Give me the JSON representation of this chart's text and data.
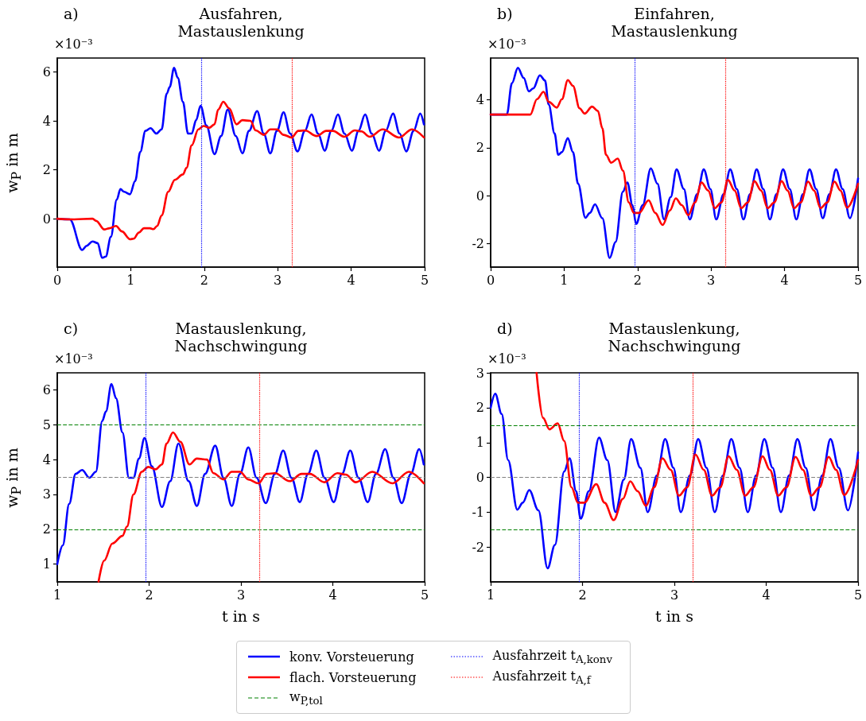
{
  "chart_data": [
    {
      "type": "line",
      "title": "Ausfahren,\nMastauslenkung",
      "ylabel": "w$_{P}$ in m",
      "annotations": [
        "a)",
        "×10⁻³"
      ],
      "xlim": [
        0,
        5
      ],
      "xticks": [
        0,
        1,
        2,
        3,
        4,
        5
      ],
      "ylim": [
        -1.98,
        6.57
      ],
      "yticks": [
        0,
        2,
        4,
        6
      ],
      "legend": "bottom",
      "marker": "none",
      "line_style": "solid",
      "ref_lines": [
        {
          "axis": "x",
          "value": 1.96,
          "color": "#0000ff",
          "line_style": "dotted"
        },
        {
          "axis": "x",
          "value": 3.2,
          "color": "#ff0000",
          "line_style": "dotted"
        }
      ],
      "series": [
        {
          "name": "konv. Vorsteuerung",
          "color": "#0000ff",
          "x": [
            0,
            0.17,
            0.34,
            0.4,
            0.48,
            0.55,
            0.61,
            0.66,
            0.73,
            0.81,
            0.86,
            0.91,
            0.99,
            1.06,
            1.13,
            1.2,
            1.27,
            1.35,
            1.42,
            1.49,
            1.53,
            1.59,
            1.64,
            1.71,
            1.78,
            1.83,
            1.89,
            1.95,
            2.03,
            2.14,
            2.23,
            2.32,
            2.43,
            2.52,
            2.61,
            2.72,
            2.81,
            2.9,
            2.99,
            3.08,
            3.17,
            3.27,
            3.37,
            3.46,
            3.55,
            3.64,
            3.73,
            3.82,
            3.91,
            4.01,
            4.1,
            4.19,
            4.28,
            4.38,
            4.47,
            4.57,
            4.66,
            4.75,
            4.85,
            4.94,
            4.99
          ],
          "values": [
            0,
            -0.03,
            -1.28,
            -1.11,
            -0.93,
            -1.0,
            -1.6,
            -1.55,
            -0.74,
            0.78,
            1.21,
            1.1,
            1.0,
            1.54,
            2.73,
            3.59,
            3.7,
            3.48,
            3.65,
            5.11,
            5.38,
            6.17,
            5.76,
            4.78,
            3.48,
            3.48,
            4.03,
            4.62,
            3.81,
            2.64,
            3.38,
            4.46,
            3.38,
            2.67,
            3.59,
            4.4,
            3.48,
            2.67,
            3.59,
            4.35,
            3.48,
            2.75,
            3.59,
            4.26,
            3.48,
            2.78,
            3.59,
            4.26,
            3.48,
            2.78,
            3.59,
            4.26,
            3.48,
            2.78,
            3.59,
            4.3,
            3.48,
            2.75,
            3.59,
            4.3,
            3.86
          ]
        },
        {
          "name": "flach. Vorsteuerung",
          "color": "#ff0000",
          "x": [
            0,
            0.23,
            0.48,
            0.53,
            0.64,
            0.71,
            0.8,
            0.88,
            0.99,
            1.04,
            1.11,
            1.18,
            1.26,
            1.31,
            1.36,
            1.42,
            1.51,
            1.6,
            1.71,
            1.76,
            1.83,
            1.92,
            1.99,
            2.07,
            2.14,
            2.19,
            2.26,
            2.34,
            2.44,
            2.52,
            2.63,
            2.7,
            2.81,
            2.9,
            2.99,
            3.08,
            3.19,
            3.28,
            3.37,
            3.53,
            3.66,
            3.75,
            3.91,
            4.05,
            4.14,
            4.25,
            4.43,
            4.65,
            4.83,
            4.99
          ],
          "values": [
            0,
            -0.03,
            0,
            -0.09,
            -0.44,
            -0.39,
            -0.3,
            -0.52,
            -0.84,
            -0.82,
            -0.57,
            -0.39,
            -0.39,
            -0.43,
            -0.3,
            0.13,
            1.1,
            1.59,
            1.81,
            2.08,
            3.0,
            3.65,
            3.79,
            3.72,
            3.86,
            4.46,
            4.78,
            4.51,
            3.86,
            4.03,
            4.0,
            3.61,
            3.43,
            3.65,
            3.65,
            3.43,
            3.32,
            3.59,
            3.61,
            3.38,
            3.59,
            3.59,
            3.35,
            3.61,
            3.57,
            3.35,
            3.65,
            3.32,
            3.65,
            3.32
          ]
        }
      ]
    },
    {
      "type": "line",
      "title": "Einfahren,\nMastauslenkung",
      "annotations": [
        "b)",
        "×10⁻³"
      ],
      "xlim": [
        0,
        5
      ],
      "xticks": [
        0,
        1,
        2,
        3,
        4,
        5
      ],
      "ylim": [
        -2.98,
        5.75
      ],
      "yticks": [
        -2,
        0,
        2,
        4
      ],
      "marker": "none",
      "line_style": "solid",
      "ref_lines": [
        {
          "axis": "x",
          "value": 1.96,
          "color": "#0000ff",
          "line_style": "dotted"
        },
        {
          "axis": "x",
          "value": 3.2,
          "color": "#ff0000",
          "line_style": "dotted"
        }
      ],
      "series": [
        {
          "color": "#0000ff",
          "x": [
            0,
            0.22,
            0.29,
            0.37,
            0.45,
            0.52,
            0.58,
            0.67,
            0.74,
            0.79,
            0.87,
            0.92,
            0.97,
            1.05,
            1.12,
            1.19,
            1.29,
            1.35,
            1.42,
            1.52,
            1.62,
            1.7,
            1.8,
            1.86,
            1.93,
            1.98,
            2.07,
            2.18,
            2.27,
            2.36,
            2.45,
            2.53,
            2.63,
            2.71,
            2.81,
            2.9,
            2.99,
            3.07,
            3.17,
            3.26,
            3.35,
            3.44,
            3.53,
            3.62,
            3.71,
            3.8,
            3.89,
            3.98,
            4.07,
            4.16,
            4.25,
            4.34,
            4.43,
            4.52,
            4.61,
            4.7,
            4.79,
            4.89,
            5.0
          ],
          "values": [
            3.39,
            3.39,
            4.7,
            5.34,
            4.92,
            4.36,
            4.48,
            5.03,
            4.81,
            3.81,
            2.6,
            1.71,
            1.82,
            2.4,
            1.82,
            0.5,
            -0.92,
            -0.72,
            -0.36,
            -0.94,
            -2.6,
            -1.93,
            0.17,
            0.55,
            -0.39,
            -1.18,
            -0.39,
            1.14,
            0.5,
            -0.99,
            -0.06,
            1.1,
            0.28,
            -0.99,
            0.06,
            1.1,
            0.28,
            -0.99,
            0.06,
            1.1,
            0.28,
            -0.99,
            0.06,
            1.1,
            0.28,
            -0.99,
            0.06,
            1.1,
            0.28,
            -0.99,
            0.06,
            1.1,
            0.28,
            -0.94,
            0.06,
            1.1,
            0.28,
            -0.94,
            0.72
          ]
        },
        {
          "color": "#ff0000",
          "x": [
            0,
            0.54,
            0.63,
            0.72,
            0.79,
            0.9,
            0.97,
            1.05,
            1.12,
            1.21,
            1.28,
            1.38,
            1.46,
            1.52,
            1.57,
            1.64,
            1.73,
            1.8,
            1.88,
            1.95,
            2.02,
            2.15,
            2.24,
            2.34,
            2.44,
            2.52,
            2.6,
            2.69,
            2.78,
            2.87,
            2.96,
            3.05,
            3.14,
            3.23,
            3.32,
            3.41,
            3.5,
            3.59,
            3.68,
            3.77,
            3.86,
            3.96,
            4.04,
            4.13,
            4.22,
            4.32,
            4.4,
            4.49,
            4.58,
            4.68,
            4.76,
            4.85,
            5.0
          ],
          "values": [
            3.39,
            3.39,
            4.03,
            4.34,
            3.92,
            3.68,
            4.03,
            4.83,
            4.59,
            3.65,
            3.43,
            3.72,
            3.54,
            2.82,
            1.71,
            1.38,
            1.55,
            1.05,
            -0.28,
            -0.72,
            -0.72,
            -0.19,
            -0.72,
            -1.22,
            -0.61,
            -0.11,
            -0.39,
            -0.81,
            -0.28,
            0.55,
            0.22,
            -0.52,
            -0.28,
            0.66,
            0.22,
            -0.52,
            -0.28,
            0.61,
            0.22,
            -0.52,
            -0.28,
            0.61,
            0.22,
            -0.52,
            -0.28,
            0.59,
            0.22,
            -0.52,
            -0.28,
            0.59,
            0.22,
            -0.5,
            0.5
          ]
        }
      ]
    },
    {
      "type": "line",
      "title": "Mastauslenkung,\nNachschwingung",
      "xlabel": "t in s",
      "ylabel": "w$_{P}$ in m",
      "annotations": [
        "c)",
        "×10⁻³"
      ],
      "xlim": [
        1,
        5
      ],
      "xticks": [
        1,
        2,
        3,
        4,
        5
      ],
      "ylim": [
        0.49,
        6.49
      ],
      "yticks": [
        1,
        2,
        3,
        4,
        5,
        6
      ],
      "legend": "bottom",
      "marker": "none",
      "line_style": "solid",
      "ref_lines": [
        {
          "axis": "y",
          "value": 5,
          "label": "w$_{P,tol}$",
          "color": "#008000",
          "line_style": "dashed"
        },
        {
          "axis": "y",
          "value": 2,
          "color": "#008000",
          "line_style": "dashed"
        },
        {
          "axis": "y",
          "value": 3.5,
          "color": "#808080",
          "line_style": "dashed"
        },
        {
          "axis": "x",
          "value": 1.96,
          "label": "Ausfahrzeit t$_{A,konv}$",
          "color": "#0000ff",
          "line_style": "dotted"
        },
        {
          "axis": "x",
          "value": 3.2,
          "label": "Ausfahrzeit t$_{A,f}$",
          "color": "#ff0000",
          "line_style": "dotted"
        }
      ],
      "series": [
        {
          "color": "#0000ff",
          "x": [
            1.0,
            1.06,
            1.13,
            1.2,
            1.27,
            1.35,
            1.42,
            1.49,
            1.53,
            1.59,
            1.64,
            1.71,
            1.78,
            1.83,
            1.89,
            1.95,
            2.03,
            2.14,
            2.23,
            2.32,
            2.43,
            2.52,
            2.61,
            2.72,
            2.81,
            2.9,
            2.99,
            3.08,
            3.17,
            3.27,
            3.37,
            3.46,
            3.55,
            3.64,
            3.73,
            3.82,
            3.91,
            4.01,
            4.1,
            4.19,
            4.28,
            4.38,
            4.47,
            4.57,
            4.66,
            4.75,
            4.85,
            4.94,
            4.99
          ],
          "values": [
            1.0,
            1.54,
            2.73,
            3.59,
            3.7,
            3.48,
            3.65,
            5.11,
            5.38,
            6.17,
            5.76,
            4.78,
            3.48,
            3.48,
            4.03,
            4.62,
            3.81,
            2.64,
            3.38,
            4.46,
            3.38,
            2.67,
            3.59,
            4.4,
            3.48,
            2.67,
            3.59,
            4.35,
            3.48,
            2.75,
            3.59,
            4.26,
            3.48,
            2.78,
            3.59,
            4.26,
            3.48,
            2.78,
            3.59,
            4.26,
            3.48,
            2.78,
            3.59,
            4.3,
            3.48,
            2.75,
            3.59,
            4.3,
            3.86
          ]
        },
        {
          "color": "#ff0000",
          "x": [
            1.45,
            1.51,
            1.6,
            1.71,
            1.76,
            1.83,
            1.92,
            1.99,
            2.07,
            2.14,
            2.19,
            2.26,
            2.34,
            2.44,
            2.52,
            2.63,
            2.7,
            2.81,
            2.9,
            2.99,
            3.08,
            3.19,
            3.28,
            3.37,
            3.53,
            3.66,
            3.75,
            3.91,
            4.05,
            4.14,
            4.25,
            4.43,
            4.65,
            4.83,
            4.99
          ],
          "values": [
            0.5,
            1.1,
            1.59,
            1.81,
            2.08,
            3.0,
            3.65,
            3.79,
            3.72,
            3.86,
            4.46,
            4.78,
            4.51,
            3.86,
            4.03,
            4.0,
            3.61,
            3.43,
            3.65,
            3.65,
            3.43,
            3.32,
            3.59,
            3.61,
            3.38,
            3.59,
            3.59,
            3.35,
            3.61,
            3.57,
            3.35,
            3.65,
            3.32,
            3.65,
            3.32
          ]
        }
      ]
    },
    {
      "type": "line",
      "title": "Mastauslenkung,\nNachschwingung",
      "xlabel": "t in s",
      "annotations": [
        "d)",
        "×10⁻³"
      ],
      "xlim": [
        1,
        5
      ],
      "xticks": [
        1,
        2,
        3,
        4,
        5
      ],
      "ylim": [
        -2.99,
        3
      ],
      "yticks": [
        -2,
        -1,
        0,
        1,
        2,
        3
      ],
      "marker": "none",
      "line_style": "solid",
      "ref_lines": [
        {
          "axis": "y",
          "value": 1.5,
          "color": "#008000",
          "line_style": "dashed"
        },
        {
          "axis": "y",
          "value": -1.5,
          "color": "#008000",
          "line_style": "dashed"
        },
        {
          "axis": "y",
          "value": 0,
          "color": "#808080",
          "line_style": "dashed"
        },
        {
          "axis": "x",
          "value": 1.96,
          "color": "#0000ff",
          "line_style": "dotted"
        },
        {
          "axis": "x",
          "value": 3.2,
          "color": "#ff0000",
          "line_style": "dotted"
        }
      ],
      "series": [
        {
          "color": "#0000ff",
          "x": [
            1.0,
            1.05,
            1.12,
            1.19,
            1.29,
            1.35,
            1.42,
            1.52,
            1.62,
            1.7,
            1.8,
            1.86,
            1.93,
            1.98,
            2.07,
            2.18,
            2.27,
            2.36,
            2.45,
            2.53,
            2.63,
            2.71,
            2.81,
            2.9,
            2.99,
            3.07,
            3.17,
            3.26,
            3.35,
            3.44,
            3.53,
            3.62,
            3.71,
            3.8,
            3.89,
            3.98,
            4.07,
            4.16,
            4.25,
            4.34,
            4.43,
            4.52,
            4.61,
            4.7,
            4.79,
            4.89,
            5.0
          ],
          "values": [
            2.0,
            2.4,
            1.82,
            0.5,
            -0.92,
            -0.72,
            -0.36,
            -0.94,
            -2.6,
            -1.93,
            0.17,
            0.55,
            -0.39,
            -1.18,
            -0.39,
            1.14,
            0.5,
            -0.99,
            -0.06,
            1.1,
            0.28,
            -0.99,
            0.06,
            1.1,
            0.28,
            -0.99,
            0.06,
            1.1,
            0.28,
            -0.99,
            0.06,
            1.1,
            0.28,
            -0.99,
            0.06,
            1.1,
            0.28,
            -0.99,
            0.06,
            1.1,
            0.28,
            -0.94,
            0.06,
            1.1,
            0.28,
            -0.94,
            0.72
          ]
        },
        {
          "color": "#ff0000",
          "x": [
            1.5,
            1.57,
            1.64,
            1.73,
            1.8,
            1.88,
            1.95,
            2.02,
            2.15,
            2.24,
            2.34,
            2.44,
            2.52,
            2.6,
            2.69,
            2.78,
            2.87,
            2.96,
            3.05,
            3.14,
            3.23,
            3.32,
            3.41,
            3.5,
            3.59,
            3.68,
            3.77,
            3.86,
            3.96,
            4.04,
            4.13,
            4.22,
            4.32,
            4.4,
            4.49,
            4.58,
            4.68,
            4.76,
            4.85,
            5.0
          ],
          "values": [
            3.0,
            1.71,
            1.38,
            1.55,
            1.05,
            -0.28,
            -0.72,
            -0.72,
            -0.19,
            -0.72,
            -1.22,
            -0.61,
            -0.11,
            -0.39,
            -0.81,
            -0.28,
            0.55,
            0.22,
            -0.52,
            -0.28,
            0.66,
            0.22,
            -0.52,
            -0.28,
            0.61,
            0.22,
            -0.52,
            -0.28,
            0.61,
            0.22,
            -0.52,
            -0.28,
            0.59,
            0.22,
            -0.52,
            -0.28,
            0.59,
            0.22,
            -0.5,
            0.5
          ]
        }
      ]
    }
  ]
}
